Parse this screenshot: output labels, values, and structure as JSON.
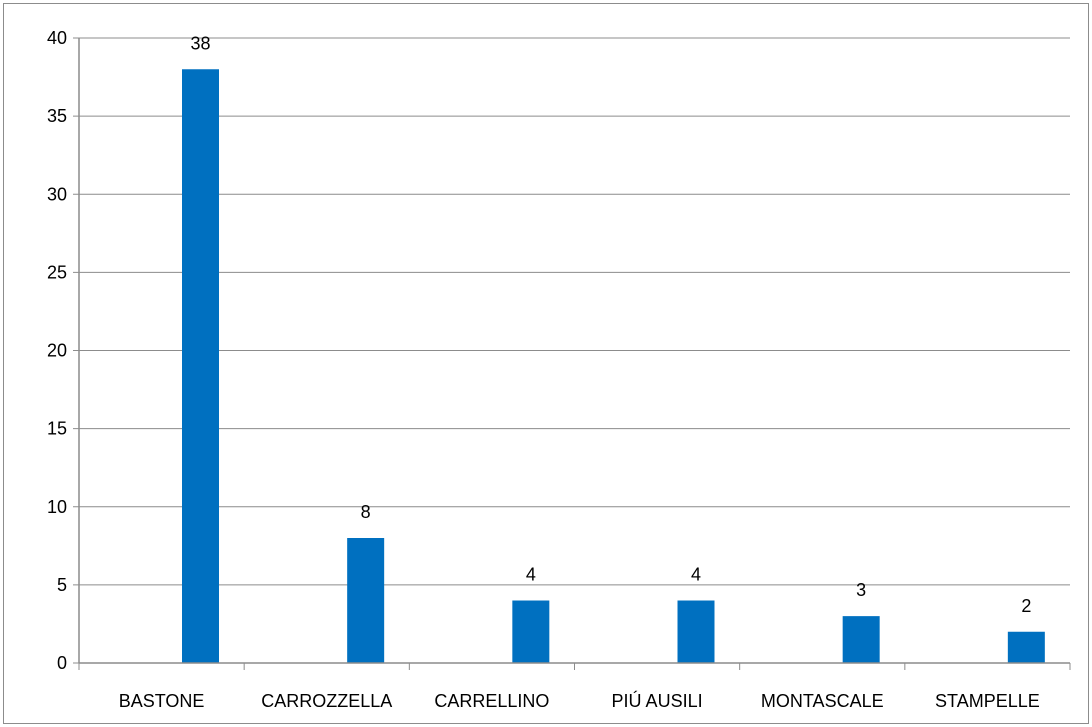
{
  "chart_data": {
    "type": "bar",
    "title": "",
    "xlabel": "",
    "ylabel": "",
    "categories": [
      "BASTONE",
      "CARROZZELLA",
      "CARRELLINO",
      "PIÚ AUSILI",
      "MONTASCALE",
      "STAMPELLE"
    ],
    "values": [
      38,
      8,
      4,
      4,
      3,
      2
    ],
    "data_labels": [
      "38",
      "8",
      "4",
      "4",
      "3",
      "2"
    ],
    "ylim": [
      0,
      40
    ],
    "yticks": [
      0,
      5,
      10,
      15,
      20,
      25,
      30,
      35,
      40
    ],
    "ytick_labels": [
      "0",
      "5",
      "10",
      "15",
      "20",
      "25",
      "30",
      "35",
      "40"
    ],
    "grid": true,
    "legend": "none",
    "colors": {
      "bar": "#0070C0",
      "grid": "#8c8c8c",
      "axis": "#8c8c8c",
      "text": "#000000"
    }
  }
}
